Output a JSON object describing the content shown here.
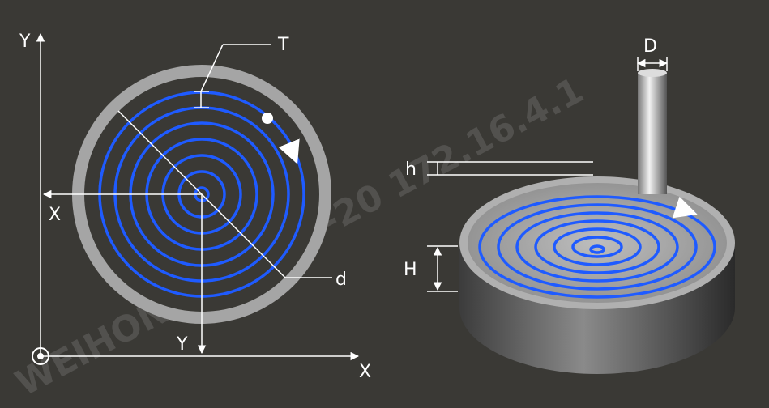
{
  "labels": {
    "left_y_axis": "Y",
    "T": "T",
    "x_offset": "X",
    "d": "d",
    "y_offset": "Y",
    "left_x_axis": "X",
    "D": "D",
    "h": "h",
    "H": "H"
  },
  "watermark": "WEIHONG 202 05-20 172.16.4.1"
}
